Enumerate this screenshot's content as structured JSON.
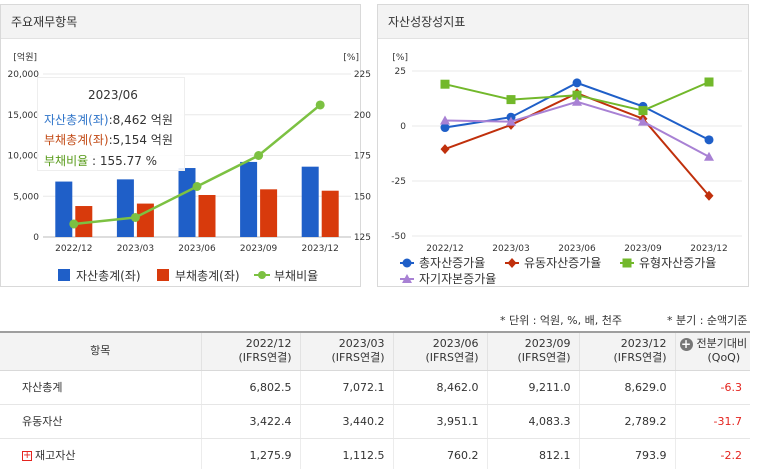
{
  "left_panel": {
    "title": "주요재무항목"
  },
  "right_panel": {
    "title": "자산성장성지표"
  },
  "tooltip": {
    "date": "2023/06",
    "rows": [
      {
        "label": "자산총계(좌)",
        "value": ":8,462 억원",
        "color": "#2e74c9"
      },
      {
        "label": "부채총계(좌)",
        "value": ":5,154 억원",
        "color": "#c24a14"
      },
      {
        "label": "부채비율",
        "value": " :  155.77 %",
        "color": "#5a9c1c"
      }
    ]
  },
  "chart_data": [
    {
      "type": "bar",
      "title": "",
      "categories": [
        "2022/12",
        "2023/03",
        "2023/06",
        "2023/09",
        "2023/12"
      ],
      "left_axis": {
        "unit": "[억원]",
        "ticks": [
          "20,000",
          "15,000",
          "10,000",
          "5,000",
          "0"
        ],
        "range": [
          0,
          20000
        ]
      },
      "right_axis": {
        "unit": "[%]",
        "ticks": [
          "225",
          "200",
          "175",
          "150",
          "125"
        ],
        "range": [
          125,
          225
        ]
      },
      "series": [
        {
          "name": "자산총계(좌)",
          "kind": "bar",
          "axis": "left",
          "color": "#1f5fc8",
          "values": [
            6802.5,
            7072.1,
            8462.0,
            9211.0,
            8629.0
          ]
        },
        {
          "name": "부채총계(좌)",
          "kind": "bar",
          "axis": "left",
          "color": "#d83a0c",
          "values": [
            3800,
            4100,
            5154,
            5850,
            5680
          ]
        },
        {
          "name": "부채비율",
          "kind": "line",
          "axis": "right",
          "color": "#7cc142",
          "values": [
            133,
            137,
            156,
            175,
            206
          ]
        }
      ],
      "legend_position": "bottom"
    },
    {
      "type": "line",
      "title": "",
      "categories": [
        "2022/12",
        "2023/03",
        "2023/06",
        "2023/09",
        "2023/12"
      ],
      "y_axis": {
        "unit": "[%]",
        "ticks": [
          "25",
          "0",
          "-25",
          "-50"
        ],
        "range": [
          -50,
          25
        ]
      },
      "series": [
        {
          "name": "총자산증가율",
          "color": "#1f5fc8",
          "marker": "circle",
          "values": [
            -0.7,
            4.0,
            19.6,
            8.9,
            -6.3
          ]
        },
        {
          "name": "유동자산증가율",
          "color": "#c0300c",
          "marker": "diamond",
          "values": [
            -10.5,
            0.5,
            14.9,
            3.3,
            -31.7
          ]
        },
        {
          "name": "유형자산증가율",
          "color": "#72b82b",
          "marker": "square",
          "values": [
            19.0,
            12.0,
            14.0,
            7.0,
            20.0
          ]
        },
        {
          "name": "자기자본증가율",
          "color": "#a881d4",
          "marker": "triangle",
          "values": [
            2.5,
            2.0,
            11.0,
            2.0,
            -14.0
          ]
        }
      ],
      "legend_position": "bottom"
    }
  ],
  "notes": {
    "unit": "* 단위 : 억원, %, 배, 천주",
    "quarter": "* 분기 : 순액기준"
  },
  "table": {
    "headers": [
      {
        "label": "항목"
      },
      {
        "line1": "2022/12",
        "line2": "(IFRS연결)"
      },
      {
        "line1": "2023/03",
        "line2": "(IFRS연결)"
      },
      {
        "line1": "2023/06",
        "line2": "(IFRS연결)"
      },
      {
        "line1": "2023/09",
        "line2": "(IFRS연결)"
      },
      {
        "line1": "2023/12",
        "line2": "(IFRS연결)"
      },
      {
        "line1": "전분기대비",
        "line2": "(QoQ)"
      }
    ],
    "rows": [
      {
        "label": "자산총계",
        "values": [
          "6,802.5",
          "7,072.1",
          "8,462.0",
          "9,211.0",
          "8,629.0"
        ],
        "qoq": "-6.3"
      },
      {
        "label": "유동자산",
        "values": [
          "3,422.4",
          "3,440.2",
          "3,951.1",
          "4,083.3",
          "2,789.2"
        ],
        "qoq": "-31.7"
      },
      {
        "label": "재고자산",
        "values": [
          "1,275.9",
          "1,112.5",
          "760.2",
          "812.1",
          "793.9"
        ],
        "qoq": "-2.2"
      }
    ]
  }
}
